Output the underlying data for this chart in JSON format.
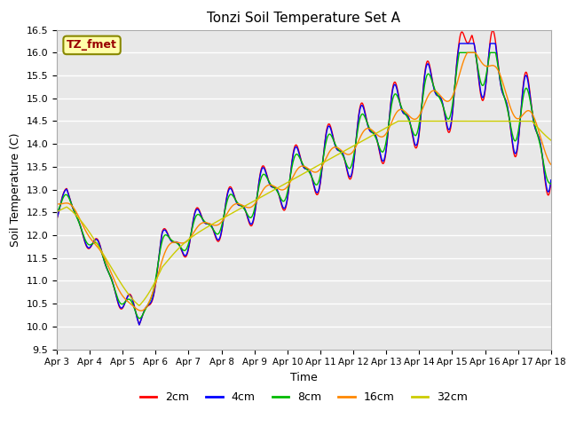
{
  "title": "Tonzi Soil Temperature Set A",
  "xlabel": "Time",
  "ylabel": "Soil Temperature (C)",
  "label_tag": "TZ_fmet",
  "ylim": [
    9.5,
    16.5
  ],
  "series_labels": [
    "2cm",
    "4cm",
    "8cm",
    "16cm",
    "32cm"
  ],
  "series_colors": [
    "#ff0000",
    "#0000ff",
    "#00bb00",
    "#ff8800",
    "#cccc00"
  ],
  "bg_color": "#e8e8e8",
  "xtick_labels": [
    "Apr 3",
    "Apr 4",
    "Apr 5",
    "Apr 6",
    "Apr 7",
    "Apr 8",
    "Apr 9",
    "Apr 10",
    "Apr 11",
    "Apr 12",
    "Apr 13",
    "Apr 14",
    "Apr 15",
    "Apr 16",
    "Apr 17",
    "Apr 18"
  ],
  "yticks": [
    9.5,
    10.0,
    10.5,
    11.0,
    11.5,
    12.0,
    12.5,
    13.0,
    13.5,
    14.0,
    14.5,
    15.0,
    15.5,
    16.0,
    16.5
  ]
}
